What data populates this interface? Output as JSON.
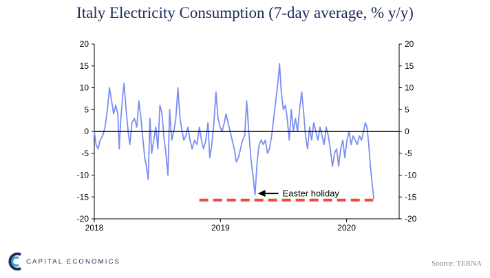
{
  "title": "Italy Electricity Consumption (7-day average, % y/y)",
  "source": "Source: TERNA",
  "logo_text": "CAPITAL ECONOMICS",
  "colors": {
    "line": "#7b8ef2",
    "dash": "#f04a3a",
    "title": "#1c2b5a",
    "axis": "#000000"
  },
  "chart_data": {
    "type": "line",
    "title": "Italy Electricity Consumption (7-day average, % y/y)",
    "xlabel": "",
    "ylabel": "",
    "ylim": [
      -20,
      20
    ],
    "yticks": [
      -20,
      -15,
      -10,
      -5,
      0,
      5,
      10,
      15,
      20
    ],
    "xlim": [
      "2018-01-01",
      "2020-06-01"
    ],
    "xticks": [
      {
        "date": "2018-01-01",
        "label": "2018"
      },
      {
        "date": "2019-01-01",
        "label": "2019"
      },
      {
        "date": "2020-01-01",
        "label": "2020"
      }
    ],
    "grid": false,
    "series": [
      {
        "points": [
          [
            "2018-01-01",
            0
          ],
          [
            "2018-01-06",
            -3
          ],
          [
            "2018-01-12",
            -4
          ],
          [
            "2018-01-18",
            -2
          ],
          [
            "2018-01-25",
            -1
          ],
          [
            "2018-02-01",
            1
          ],
          [
            "2018-02-08",
            5
          ],
          [
            "2018-02-14",
            10
          ],
          [
            "2018-02-20",
            7
          ],
          [
            "2018-02-26",
            4
          ],
          [
            "2018-03-04",
            6
          ],
          [
            "2018-03-10",
            4
          ],
          [
            "2018-03-14",
            -4
          ],
          [
            "2018-03-18",
            2
          ],
          [
            "2018-03-24",
            8
          ],
          [
            "2018-03-28",
            11
          ],
          [
            "2018-04-03",
            5
          ],
          [
            "2018-04-09",
            0
          ],
          [
            "2018-04-14",
            -3
          ],
          [
            "2018-04-20",
            2
          ],
          [
            "2018-04-27",
            3
          ],
          [
            "2018-05-04",
            1
          ],
          [
            "2018-05-10",
            7
          ],
          [
            "2018-05-16",
            3
          ],
          [
            "2018-05-22",
            -2
          ],
          [
            "2018-05-27",
            -6
          ],
          [
            "2018-06-01",
            -8
          ],
          [
            "2018-06-06",
            -11
          ],
          [
            "2018-06-11",
            3
          ],
          [
            "2018-06-16",
            -5
          ],
          [
            "2018-06-22",
            -2
          ],
          [
            "2018-06-28",
            1
          ],
          [
            "2018-07-04",
            -4
          ],
          [
            "2018-07-10",
            6
          ],
          [
            "2018-07-16",
            4
          ],
          [
            "2018-07-21",
            -1
          ],
          [
            "2018-07-27",
            -5
          ],
          [
            "2018-08-02",
            -10
          ],
          [
            "2018-08-07",
            5
          ],
          [
            "2018-08-13",
            -2
          ],
          [
            "2018-08-19",
            0
          ],
          [
            "2018-08-25",
            3
          ],
          [
            "2018-08-31",
            10
          ],
          [
            "2018-09-06",
            3
          ],
          [
            "2018-09-12",
            0
          ],
          [
            "2018-09-17",
            -2
          ],
          [
            "2018-09-23",
            -1
          ],
          [
            "2018-09-29",
            1
          ],
          [
            "2018-10-05",
            -2
          ],
          [
            "2018-10-11",
            -4
          ],
          [
            "2018-10-18",
            -2
          ],
          [
            "2018-10-25",
            -3
          ],
          [
            "2018-11-01",
            1
          ],
          [
            "2018-11-07",
            -2
          ],
          [
            "2018-11-13",
            -4
          ],
          [
            "2018-11-20",
            -2
          ],
          [
            "2018-11-26",
            2
          ],
          [
            "2018-12-01",
            -6
          ],
          [
            "2018-12-07",
            -3
          ],
          [
            "2018-12-13",
            2
          ],
          [
            "2018-12-19",
            9
          ],
          [
            "2018-12-25",
            3
          ],
          [
            "2018-12-31",
            1
          ],
          [
            "2019-01-06",
            0
          ],
          [
            "2019-01-12",
            2
          ],
          [
            "2019-01-17",
            4
          ],
          [
            "2019-01-23",
            2
          ],
          [
            "2019-01-29",
            0
          ],
          [
            "2019-02-04",
            -2
          ],
          [
            "2019-02-10",
            -4
          ],
          [
            "2019-02-16",
            -7
          ],
          [
            "2019-02-22",
            -6
          ],
          [
            "2019-02-28",
            -4
          ],
          [
            "2019-03-06",
            -2
          ],
          [
            "2019-03-12",
            -1
          ],
          [
            "2019-03-18",
            7
          ],
          [
            "2019-03-24",
            0
          ],
          [
            "2019-03-30",
            -6
          ],
          [
            "2019-04-05",
            -10
          ],
          [
            "2019-04-11",
            -14.5
          ],
          [
            "2019-04-17",
            -7
          ],
          [
            "2019-04-23",
            -3
          ],
          [
            "2019-04-29",
            -2
          ],
          [
            "2019-05-05",
            -3
          ],
          [
            "2019-05-11",
            -2
          ],
          [
            "2019-05-17",
            -5
          ],
          [
            "2019-05-23",
            -4
          ],
          [
            "2019-05-29",
            -1
          ],
          [
            "2019-06-04",
            3
          ],
          [
            "2019-06-10",
            7
          ],
          [
            "2019-06-16",
            11
          ],
          [
            "2019-06-21",
            15.5
          ],
          [
            "2019-06-26",
            9
          ],
          [
            "2019-07-02",
            5
          ],
          [
            "2019-07-08",
            6
          ],
          [
            "2019-07-13",
            3
          ],
          [
            "2019-07-19",
            -2
          ],
          [
            "2019-07-25",
            5
          ],
          [
            "2019-07-31",
            0
          ],
          [
            "2019-08-06",
            3
          ],
          [
            "2019-08-12",
            0
          ],
          [
            "2019-08-18",
            5
          ],
          [
            "2019-08-24",
            9
          ],
          [
            "2019-08-29",
            5
          ],
          [
            "2019-09-04",
            -1
          ],
          [
            "2019-09-10",
            -4
          ],
          [
            "2019-09-16",
            1
          ],
          [
            "2019-09-22",
            -2
          ],
          [
            "2019-09-28",
            2
          ],
          [
            "2019-10-04",
            0
          ],
          [
            "2019-10-10",
            -2
          ],
          [
            "2019-10-16",
            1
          ],
          [
            "2019-10-22",
            -1
          ],
          [
            "2019-10-28",
            -3
          ],
          [
            "2019-11-03",
            1
          ],
          [
            "2019-11-09",
            -1
          ],
          [
            "2019-11-15",
            -4
          ],
          [
            "2019-11-21",
            -8
          ],
          [
            "2019-11-27",
            -5
          ],
          [
            "2019-12-03",
            -4
          ],
          [
            "2019-12-09",
            -8
          ],
          [
            "2019-12-15",
            -4
          ],
          [
            "2019-12-21",
            -2
          ],
          [
            "2019-12-27",
            -6
          ],
          [
            "2020-01-02",
            -2
          ],
          [
            "2020-01-08",
            0
          ],
          [
            "2020-01-14",
            -3
          ],
          [
            "2020-01-20",
            -1
          ],
          [
            "2020-01-26",
            -2
          ],
          [
            "2020-02-01",
            -3
          ],
          [
            "2020-02-07",
            -1
          ],
          [
            "2020-02-13",
            -2
          ],
          [
            "2020-02-19",
            0
          ],
          [
            "2020-02-24",
            2
          ],
          [
            "2020-02-29",
            1
          ],
          [
            "2020-03-05",
            -3
          ],
          [
            "2020-03-10",
            -8
          ],
          [
            "2020-03-15",
            -12
          ],
          [
            "2020-03-20",
            -15.5
          ]
        ]
      }
    ],
    "reference_line": {
      "y": -15.7,
      "from": "2018-11-01",
      "to": "2020-03-18",
      "style": "dashed"
    },
    "zero_line": true,
    "annotations": [
      {
        "text": "Easter holiday",
        "x": "2019-04-11",
        "y": -14.5
      }
    ]
  }
}
